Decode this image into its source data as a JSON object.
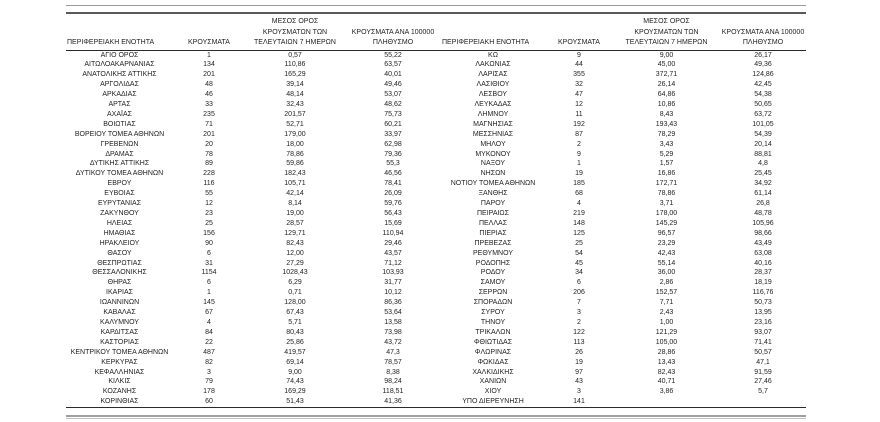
{
  "table": {
    "headers": {
      "region": "ΠΕΡΙΦΕΡΕΙΑΚΗ ΕΝΟΤΗΤΑ",
      "cases": "ΚΡΟΥΣΜΑΤΑ",
      "avg7": "ΜΕΣΟΣ ΟΡΟΣ\nΚΡΟΥΣΜΑΤΩΝ ΤΩΝ\nΤΕΛΕΥΤΑΙΩΝ 7 ΗΜΕΡΩΝ",
      "per100k": "ΚΡΟΥΣΜΑΤΑ ΑΝΑ 100000\nΠΛΗΘΥΣΜΟ"
    },
    "left_rows": [
      [
        "ΑΓΙΟ ΟΡΟΣ",
        "1",
        "0,57",
        "55,22"
      ],
      [
        "ΑΙΤΩΛΟΑΚΑΡΝΑΝΙΑΣ",
        "134",
        "110,86",
        "63,57"
      ],
      [
        "ΑΝΑΤΟΛΙΚΗΣ ΑΤΤΙΚΗΣ",
        "201",
        "165,29",
        "40,01"
      ],
      [
        "ΑΡΓΟΛΙΔΑΣ",
        "48",
        "39,14",
        "49,46"
      ],
      [
        "ΑΡΚΑΔΙΑΣ",
        "46",
        "48,14",
        "53,07"
      ],
      [
        "ΑΡΤΑΣ",
        "33",
        "32,43",
        "48,62"
      ],
      [
        "ΑΧΑΪΑΣ",
        "235",
        "201,57",
        "75,73"
      ],
      [
        "ΒΟΙΩΤΙΑΣ",
        "71",
        "52,71",
        "60,21"
      ],
      [
        "ΒΟΡΕΙΟΥ ΤΟΜΕΑ ΑΘΗΝΩΝ",
        "201",
        "179,00",
        "33,97"
      ],
      [
        "ΓΡΕΒΕΝΩΝ",
        "20",
        "18,00",
        "62,98"
      ],
      [
        "ΔΡΑΜΑΣ",
        "78",
        "78,86",
        "79,36"
      ],
      [
        "ΔΥΤΙΚΗΣ ΑΤΤΙΚΗΣ",
        "89",
        "59,86",
        "55,3"
      ],
      [
        "ΔΥΤΙΚΟΥ ΤΟΜΕΑ ΑΘΗΝΩΝ",
        "228",
        "182,43",
        "46,56"
      ],
      [
        "ΕΒΡΟΥ",
        "116",
        "105,71",
        "78,41"
      ],
      [
        "ΕΥΒΟΙΑΣ",
        "55",
        "42,14",
        "26,09"
      ],
      [
        "ΕΥΡΥΤΑΝΙΑΣ",
        "12",
        "8,14",
        "59,76"
      ],
      [
        "ΖΑΚΥΝΘΟΥ",
        "23",
        "19,00",
        "56,43"
      ],
      [
        "ΗΛΕΙΑΣ",
        "25",
        "28,57",
        "15,69"
      ],
      [
        "ΗΜΑΘΙΑΣ",
        "156",
        "129,71",
        "110,94"
      ],
      [
        "ΗΡΑΚΛΕΙΟΥ",
        "90",
        "82,43",
        "29,46"
      ],
      [
        "ΘΑΣΟΥ",
        "6",
        "12,00",
        "43,57"
      ],
      [
        "ΘΕΣΠΡΩΤΙΑΣ",
        "31",
        "27,29",
        "71,12"
      ],
      [
        "ΘΕΣΣΑΛΟΝΙΚΗΣ",
        "1154",
        "1028,43",
        "103,93"
      ],
      [
        "ΘΗΡΑΣ",
        "6",
        "6,29",
        "31,77"
      ],
      [
        "ΙΚΑΡΙΑΣ",
        "1",
        "0,71",
        "10,12"
      ],
      [
        "ΙΩΑΝΝΙΝΩΝ",
        "145",
        "128,00",
        "86,36"
      ],
      [
        "ΚΑΒΑΛΑΣ",
        "67",
        "67,43",
        "53,64"
      ],
      [
        "ΚΑΛΥΜΝΟΥ",
        "4",
        "5,71",
        "13,58"
      ],
      [
        "ΚΑΡΔΙΤΣΑΣ",
        "84",
        "80,43",
        "73,98"
      ],
      [
        "ΚΑΣΤΟΡΙΑΣ",
        "22",
        "25,86",
        "43,72"
      ],
      [
        "ΚΕΝΤΡΙΚΟΥ ΤΟΜΕΑ ΑΘΗΝΩΝ",
        "487",
        "419,57",
        "47,3"
      ],
      [
        "ΚΕΡΚΥΡΑΣ",
        "82",
        "69,14",
        "78,57"
      ],
      [
        "ΚΕΦΑΛΛΗΝΙΑΣ",
        "3",
        "9,00",
        "8,38"
      ],
      [
        "ΚΙΛΚΙΣ",
        "79",
        "74,43",
        "98,24"
      ],
      [
        "ΚΟΖΑΝΗΣ",
        "178",
        "169,29",
        "118,51"
      ],
      [
        "ΚΟΡΙΝΘΙΑΣ",
        "60",
        "51,43",
        "41,36"
      ]
    ],
    "right_rows": [
      [
        "ΚΩ",
        "9",
        "9,00",
        "26,17"
      ],
      [
        "ΛΑΚΩΝΙΑΣ",
        "44",
        "45,00",
        "49,36"
      ],
      [
        "ΛΑΡΙΣΑΣ",
        "355",
        "372,71",
        "124,86"
      ],
      [
        "ΛΑΣΙΘΙΟΥ",
        "32",
        "26,14",
        "42,45"
      ],
      [
        "ΛΕΣΒΟΥ",
        "47",
        "64,86",
        "54,38"
      ],
      [
        "ΛΕΥΚΑΔΑΣ",
        "12",
        "10,86",
        "50,65"
      ],
      [
        "ΛΗΜΝΟΥ",
        "11",
        "8,43",
        "63,72"
      ],
      [
        "ΜΑΓΝΗΣΙΑΣ",
        "192",
        "193,43",
        "101,05"
      ],
      [
        "ΜΕΣΣΗΝΙΑΣ",
        "87",
        "78,29",
        "54,39"
      ],
      [
        "ΜΗΛΟΥ",
        "2",
        "3,43",
        "20,14"
      ],
      [
        "ΜΥΚΟΝΟΥ",
        "9",
        "5,29",
        "88,81"
      ],
      [
        "ΝΑΞΟΥ",
        "1",
        "1,57",
        "4,8"
      ],
      [
        "ΝΗΣΩΝ",
        "19",
        "16,86",
        "25,45"
      ],
      [
        "ΝΟΤΙΟΥ ΤΟΜΕΑ ΑΘΗΝΩΝ",
        "185",
        "172,71",
        "34,92"
      ],
      [
        "ΞΑΝΘΗΣ",
        "68",
        "78,86",
        "61,14"
      ],
      [
        "ΠΑΡΟΥ",
        "4",
        "3,71",
        "26,8"
      ],
      [
        "ΠΕΙΡΑΙΩΣ",
        "219",
        "178,00",
        "48,78"
      ],
      [
        "ΠΕΛΛΑΣ",
        "148",
        "145,29",
        "105,96"
      ],
      [
        "ΠΙΕΡΙΑΣ",
        "125",
        "96,57",
        "98,66"
      ],
      [
        "ΠΡΕΒΕΖΑΣ",
        "25",
        "23,29",
        "43,49"
      ],
      [
        "ΡΕΘΥΜΝΟΥ",
        "54",
        "42,43",
        "63,08"
      ],
      [
        "ΡΟΔΟΠΗΣ",
        "45",
        "55,14",
        "40,16"
      ],
      [
        "ΡΟΔΟΥ",
        "34",
        "36,00",
        "28,37"
      ],
      [
        "ΣΑΜΟΥ",
        "6",
        "2,86",
        "18,19"
      ],
      [
        "ΣΕΡΡΩΝ",
        "206",
        "152,57",
        "116,76"
      ],
      [
        "ΣΠΟΡΑΔΩΝ",
        "7",
        "7,71",
        "50,73"
      ],
      [
        "ΣΥΡΟΥ",
        "3",
        "2,43",
        "13,95"
      ],
      [
        "ΤΗΝΟΥ",
        "2",
        "1,00",
        "23,16"
      ],
      [
        "ΤΡΙΚΑΛΩΝ",
        "122",
        "121,29",
        "93,07"
      ],
      [
        "ΦΘΙΩΤΙΔΑΣ",
        "113",
        "105,00",
        "71,41"
      ],
      [
        "ΦΛΩΡΙΝΑΣ",
        "26",
        "28,86",
        "50,57"
      ],
      [
        "ΦΩΚΙΔΑΣ",
        "19",
        "13,43",
        "47,1"
      ],
      [
        "ΧΑΛΚΙΔΙΚΗΣ",
        "97",
        "82,43",
        "91,59"
      ],
      [
        "ΧΑΝΙΩΝ",
        "43",
        "40,71",
        "27,46"
      ],
      [
        "ΧΙΟΥ",
        "3",
        "3,86",
        "5,7"
      ],
      [
        "ΥΠΟ ΔΙΕΡΕΥΝΗΣΗ",
        "141",
        "",
        ""
      ]
    ]
  },
  "colors": {
    "text": "#1f1f1f",
    "rule_dark": "#2b2b2b",
    "rule_medium": "#5a5a5a",
    "rule_gray": "#a0a0a0",
    "background": "#ffffff"
  }
}
